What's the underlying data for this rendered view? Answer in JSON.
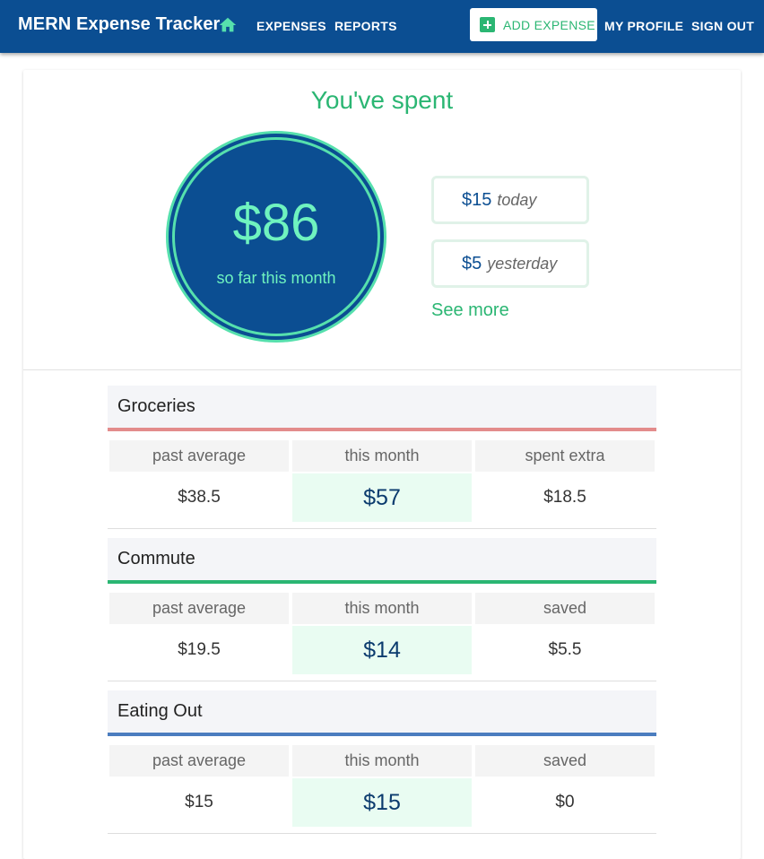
{
  "app": {
    "title": "MERN Expense Tracker",
    "nav": {
      "expenses": "EXPENSES",
      "reports": "REPORTS",
      "add_expense": "ADD EXPENSE",
      "my_profile": "MY PROFILE",
      "sign_out": "SIGN OUT"
    }
  },
  "summary": {
    "title": "You've spent",
    "month_total": "$86",
    "month_label": "so far this month",
    "today_amount": "$15",
    "today_label": "today",
    "yesterday_amount": "$5",
    "yesterday_label": "yesterday",
    "see_more": "See more"
  },
  "categories": [
    {
      "name": "Groceries",
      "color": "#e38c8c",
      "headers": [
        "past average",
        "this month",
        "spent extra"
      ],
      "values": [
        "$38.5",
        "$57",
        "$18.5"
      ]
    },
    {
      "name": "Commute",
      "color": "#2bb673",
      "headers": [
        "past average",
        "this month",
        "saved"
      ],
      "values": [
        "$19.5",
        "$14",
        "$5.5"
      ]
    },
    {
      "name": "Eating Out",
      "color": "#4b7dbf",
      "headers": [
        "past average",
        "this month",
        "saved"
      ],
      "values": [
        "$15",
        "$15",
        "$0"
      ]
    }
  ],
  "colors": {
    "primary": "#0b4e92",
    "accent": "#2bb673",
    "highlight": "#e9fcf2"
  }
}
